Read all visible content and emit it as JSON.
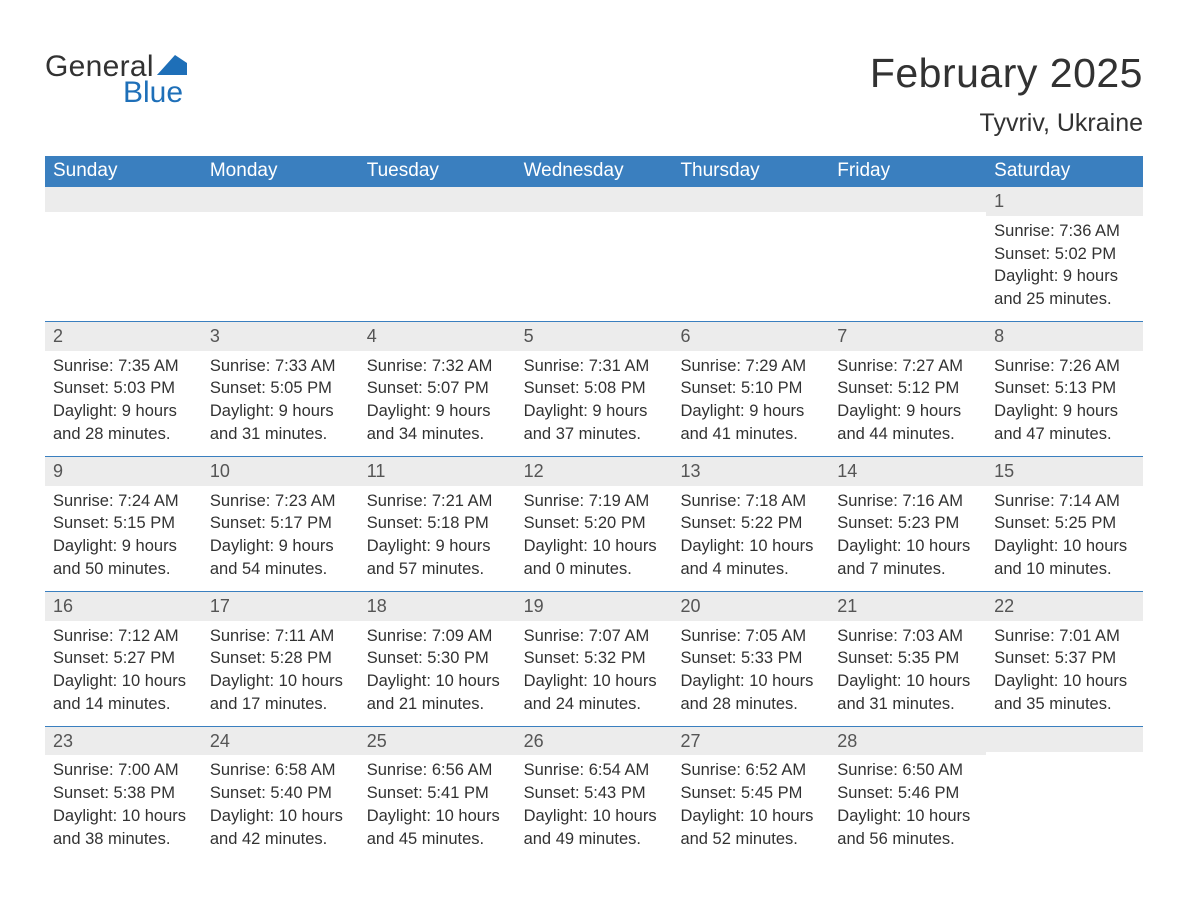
{
  "brand": {
    "part1": "General",
    "part2": "Blue",
    "flag_color": "#1e6fb8",
    "text_color": "#323232",
    "blue_color": "#1e6fb8"
  },
  "title": "February 2025",
  "location": "Tyvriv, Ukraine",
  "colors": {
    "header_bg": "#3a7fbf",
    "header_text": "#ffffff",
    "band_bg": "#ececec",
    "border": "#3a7fbf",
    "body_text": "#323232"
  },
  "fonts": {
    "month_title_size": 41,
    "location_size": 25,
    "dayhead_size": 19,
    "daynum_size": 18,
    "detail_size": 16.5
  },
  "day_headers": [
    "Sunday",
    "Monday",
    "Tuesday",
    "Wednesday",
    "Thursday",
    "Friday",
    "Saturday"
  ],
  "weeks": [
    [
      null,
      null,
      null,
      null,
      null,
      null,
      {
        "n": "1",
        "sunrise": "Sunrise: 7:36 AM",
        "sunset": "Sunset: 5:02 PM",
        "d1": "Daylight: 9 hours",
        "d2": "and 25 minutes."
      }
    ],
    [
      {
        "n": "2",
        "sunrise": "Sunrise: 7:35 AM",
        "sunset": "Sunset: 5:03 PM",
        "d1": "Daylight: 9 hours",
        "d2": "and 28 minutes."
      },
      {
        "n": "3",
        "sunrise": "Sunrise: 7:33 AM",
        "sunset": "Sunset: 5:05 PM",
        "d1": "Daylight: 9 hours",
        "d2": "and 31 minutes."
      },
      {
        "n": "4",
        "sunrise": "Sunrise: 7:32 AM",
        "sunset": "Sunset: 5:07 PM",
        "d1": "Daylight: 9 hours",
        "d2": "and 34 minutes."
      },
      {
        "n": "5",
        "sunrise": "Sunrise: 7:31 AM",
        "sunset": "Sunset: 5:08 PM",
        "d1": "Daylight: 9 hours",
        "d2": "and 37 minutes."
      },
      {
        "n": "6",
        "sunrise": "Sunrise: 7:29 AM",
        "sunset": "Sunset: 5:10 PM",
        "d1": "Daylight: 9 hours",
        "d2": "and 41 minutes."
      },
      {
        "n": "7",
        "sunrise": "Sunrise: 7:27 AM",
        "sunset": "Sunset: 5:12 PM",
        "d1": "Daylight: 9 hours",
        "d2": "and 44 minutes."
      },
      {
        "n": "8",
        "sunrise": "Sunrise: 7:26 AM",
        "sunset": "Sunset: 5:13 PM",
        "d1": "Daylight: 9 hours",
        "d2": "and 47 minutes."
      }
    ],
    [
      {
        "n": "9",
        "sunrise": "Sunrise: 7:24 AM",
        "sunset": "Sunset: 5:15 PM",
        "d1": "Daylight: 9 hours",
        "d2": "and 50 minutes."
      },
      {
        "n": "10",
        "sunrise": "Sunrise: 7:23 AM",
        "sunset": "Sunset: 5:17 PM",
        "d1": "Daylight: 9 hours",
        "d2": "and 54 minutes."
      },
      {
        "n": "11",
        "sunrise": "Sunrise: 7:21 AM",
        "sunset": "Sunset: 5:18 PM",
        "d1": "Daylight: 9 hours",
        "d2": "and 57 minutes."
      },
      {
        "n": "12",
        "sunrise": "Sunrise: 7:19 AM",
        "sunset": "Sunset: 5:20 PM",
        "d1": "Daylight: 10 hours",
        "d2": "and 0 minutes."
      },
      {
        "n": "13",
        "sunrise": "Sunrise: 7:18 AM",
        "sunset": "Sunset: 5:22 PM",
        "d1": "Daylight: 10 hours",
        "d2": "and 4 minutes."
      },
      {
        "n": "14",
        "sunrise": "Sunrise: 7:16 AM",
        "sunset": "Sunset: 5:23 PM",
        "d1": "Daylight: 10 hours",
        "d2": "and 7 minutes."
      },
      {
        "n": "15",
        "sunrise": "Sunrise: 7:14 AM",
        "sunset": "Sunset: 5:25 PM",
        "d1": "Daylight: 10 hours",
        "d2": "and 10 minutes."
      }
    ],
    [
      {
        "n": "16",
        "sunrise": "Sunrise: 7:12 AM",
        "sunset": "Sunset: 5:27 PM",
        "d1": "Daylight: 10 hours",
        "d2": "and 14 minutes."
      },
      {
        "n": "17",
        "sunrise": "Sunrise: 7:11 AM",
        "sunset": "Sunset: 5:28 PM",
        "d1": "Daylight: 10 hours",
        "d2": "and 17 minutes."
      },
      {
        "n": "18",
        "sunrise": "Sunrise: 7:09 AM",
        "sunset": "Sunset: 5:30 PM",
        "d1": "Daylight: 10 hours",
        "d2": "and 21 minutes."
      },
      {
        "n": "19",
        "sunrise": "Sunrise: 7:07 AM",
        "sunset": "Sunset: 5:32 PM",
        "d1": "Daylight: 10 hours",
        "d2": "and 24 minutes."
      },
      {
        "n": "20",
        "sunrise": "Sunrise: 7:05 AM",
        "sunset": "Sunset: 5:33 PM",
        "d1": "Daylight: 10 hours",
        "d2": "and 28 minutes."
      },
      {
        "n": "21",
        "sunrise": "Sunrise: 7:03 AM",
        "sunset": "Sunset: 5:35 PM",
        "d1": "Daylight: 10 hours",
        "d2": "and 31 minutes."
      },
      {
        "n": "22",
        "sunrise": "Sunrise: 7:01 AM",
        "sunset": "Sunset: 5:37 PM",
        "d1": "Daylight: 10 hours",
        "d2": "and 35 minutes."
      }
    ],
    [
      {
        "n": "23",
        "sunrise": "Sunrise: 7:00 AM",
        "sunset": "Sunset: 5:38 PM",
        "d1": "Daylight: 10 hours",
        "d2": "and 38 minutes."
      },
      {
        "n": "24",
        "sunrise": "Sunrise: 6:58 AM",
        "sunset": "Sunset: 5:40 PM",
        "d1": "Daylight: 10 hours",
        "d2": "and 42 minutes."
      },
      {
        "n": "25",
        "sunrise": "Sunrise: 6:56 AM",
        "sunset": "Sunset: 5:41 PM",
        "d1": "Daylight: 10 hours",
        "d2": "and 45 minutes."
      },
      {
        "n": "26",
        "sunrise": "Sunrise: 6:54 AM",
        "sunset": "Sunset: 5:43 PM",
        "d1": "Daylight: 10 hours",
        "d2": "and 49 minutes."
      },
      {
        "n": "27",
        "sunrise": "Sunrise: 6:52 AM",
        "sunset": "Sunset: 5:45 PM",
        "d1": "Daylight: 10 hours",
        "d2": "and 52 minutes."
      },
      {
        "n": "28",
        "sunrise": "Sunrise: 6:50 AM",
        "sunset": "Sunset: 5:46 PM",
        "d1": "Daylight: 10 hours",
        "d2": "and 56 minutes."
      },
      null
    ]
  ]
}
